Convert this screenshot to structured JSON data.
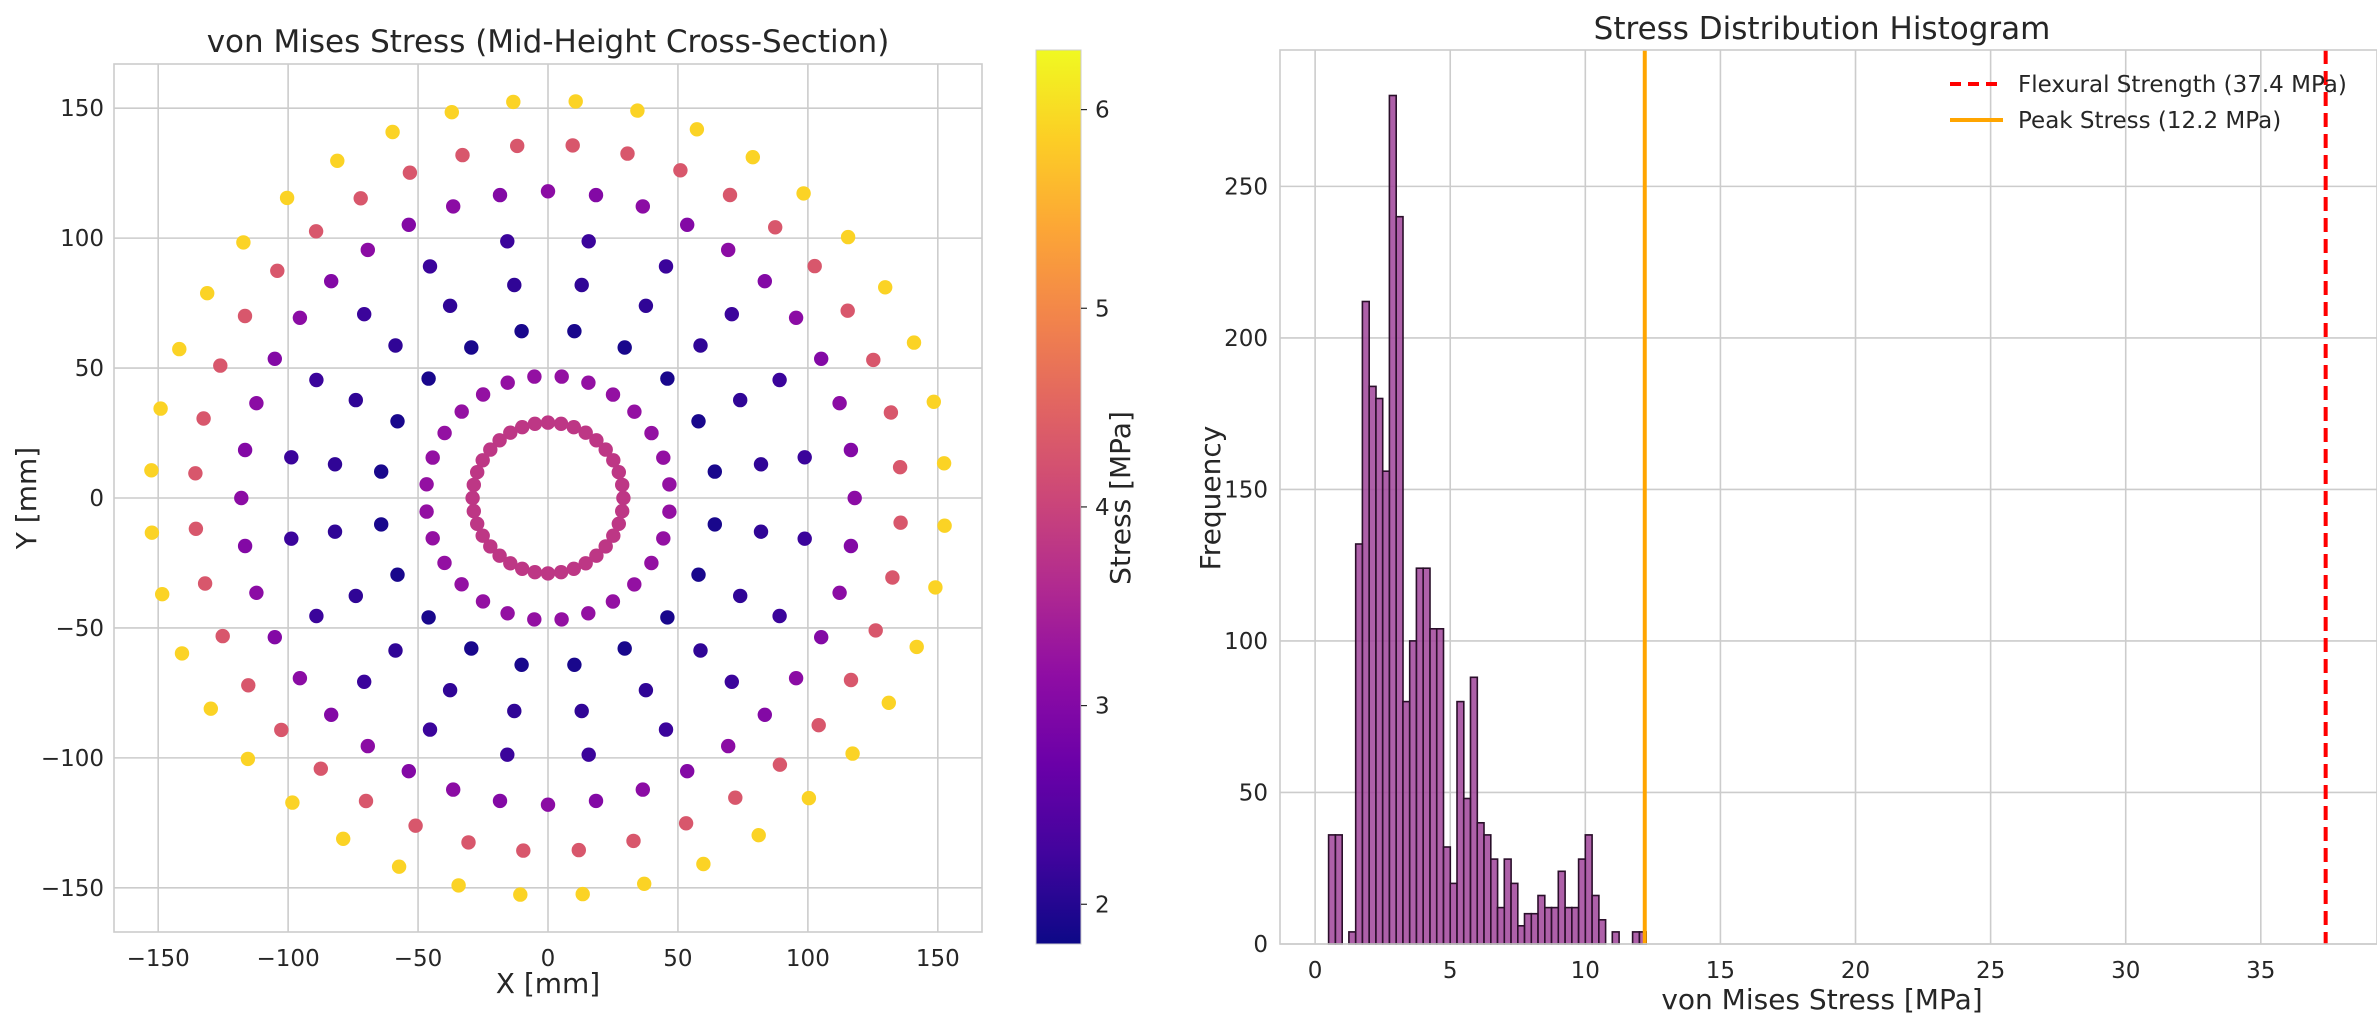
{
  "chart_data": [
    {
      "type": "scatter",
      "title": "von Mises Stress (Mid-Height Cross-Section)",
      "xlabel": "X [mm]",
      "ylabel": "Y [mm]",
      "xlim": [
        -167,
        167
      ],
      "ylim": [
        -167,
        167
      ],
      "xticks": [
        -150,
        -100,
        -50,
        0,
        50,
        100,
        150
      ],
      "yticks": [
        -150,
        -100,
        -50,
        0,
        50,
        100,
        150
      ],
      "grid": true,
      "colormap": "plasma",
      "colorbar": {
        "label": "Stress [MPa]",
        "range": [
          1.8,
          6.3
        ],
        "ticks": [
          2,
          3,
          4,
          5,
          6
        ]
      },
      "rings": [
        {
          "radius": 29,
          "count": 36,
          "stress": 3.8,
          "offset_deg": 0
        },
        {
          "radius": 47,
          "count": 28,
          "stress": 3.2,
          "offset_deg": 6.4
        },
        {
          "radius": 65,
          "count": 20,
          "stress": 1.9,
          "offset_deg": 9
        },
        {
          "radius": 83,
          "count": 20,
          "stress": 2.1,
          "offset_deg": 9
        },
        {
          "radius": 100,
          "count": 20,
          "stress": 2.2,
          "offset_deg": 9
        },
        {
          "radius": 118,
          "count": 20,
          "stress": 3.0,
          "offset_deg": 9
        },
        {
          "radius": 118,
          "count": 20,
          "stress": 3.1,
          "offset_deg": 18
        },
        {
          "radius": 136,
          "count": 20,
          "stress": 4.3,
          "offset_deg": 5
        },
        {
          "radius": 136,
          "count": 20,
          "stress": 4.3,
          "offset_deg": 14
        },
        {
          "radius": 153,
          "count": 20,
          "stress": 5.9,
          "offset_deg": 5
        },
        {
          "radius": 153,
          "count": 20,
          "stress": 5.9,
          "offset_deg": 14
        }
      ]
    },
    {
      "type": "bar",
      "subtype": "histogram",
      "title": "Stress Distribution Histogram",
      "xlabel": "von Mises Stress [MPa]",
      "ylabel": "Frequency",
      "xlim": [
        -1.3,
        39.3
      ],
      "ylim": [
        0,
        295
      ],
      "xticks": [
        0,
        5,
        10,
        15,
        20,
        25,
        30,
        35
      ],
      "yticks": [
        0,
        50,
        100,
        150,
        200,
        250
      ],
      "grid": true,
      "bin_width": 0.25,
      "bar_color": "#a0449a",
      "bins": [
        {
          "x": 0.5,
          "count": 36
        },
        {
          "x": 0.75,
          "count": 36
        },
        {
          "x": 1.0,
          "count": 0
        },
        {
          "x": 1.25,
          "count": 4
        },
        {
          "x": 1.5,
          "count": 132
        },
        {
          "x": 1.75,
          "count": 212
        },
        {
          "x": 2.0,
          "count": 184
        },
        {
          "x": 2.25,
          "count": 180
        },
        {
          "x": 2.5,
          "count": 156
        },
        {
          "x": 2.75,
          "count": 280
        },
        {
          "x": 3.0,
          "count": 240
        },
        {
          "x": 3.25,
          "count": 80
        },
        {
          "x": 3.5,
          "count": 100
        },
        {
          "x": 3.75,
          "count": 124
        },
        {
          "x": 4.0,
          "count": 124
        },
        {
          "x": 4.25,
          "count": 104
        },
        {
          "x": 4.5,
          "count": 104
        },
        {
          "x": 4.75,
          "count": 32
        },
        {
          "x": 5.0,
          "count": 20
        },
        {
          "x": 5.25,
          "count": 80
        },
        {
          "x": 5.5,
          "count": 48
        },
        {
          "x": 5.75,
          "count": 88
        },
        {
          "x": 6.0,
          "count": 40
        },
        {
          "x": 6.25,
          "count": 36
        },
        {
          "x": 6.5,
          "count": 28
        },
        {
          "x": 6.75,
          "count": 12
        },
        {
          "x": 7.0,
          "count": 28
        },
        {
          "x": 7.25,
          "count": 20
        },
        {
          "x": 7.5,
          "count": 6
        },
        {
          "x": 7.75,
          "count": 10
        },
        {
          "x": 8.0,
          "count": 10
        },
        {
          "x": 8.25,
          "count": 16
        },
        {
          "x": 8.5,
          "count": 12
        },
        {
          "x": 8.75,
          "count": 12
        },
        {
          "x": 9.0,
          "count": 24
        },
        {
          "x": 9.25,
          "count": 12
        },
        {
          "x": 9.5,
          "count": 12
        },
        {
          "x": 9.75,
          "count": 28
        },
        {
          "x": 10.0,
          "count": 36
        },
        {
          "x": 10.25,
          "count": 16
        },
        {
          "x": 10.5,
          "count": 8
        },
        {
          "x": 10.75,
          "count": 0
        },
        {
          "x": 11.0,
          "count": 4
        },
        {
          "x": 11.25,
          "count": 0
        },
        {
          "x": 11.5,
          "count": 0
        },
        {
          "x": 11.75,
          "count": 4
        },
        {
          "x": 12.0,
          "count": 4
        }
      ],
      "reference_lines": [
        {
          "label": "Flexural Strength (37.4 MPa)",
          "x": 37.4,
          "color": "#ff0000",
          "style": "dashed"
        },
        {
          "label": "Peak Stress (12.2 MPa)",
          "x": 12.2,
          "color": "#ffa500",
          "style": "solid"
        }
      ],
      "legend_placement": "top-right"
    }
  ]
}
